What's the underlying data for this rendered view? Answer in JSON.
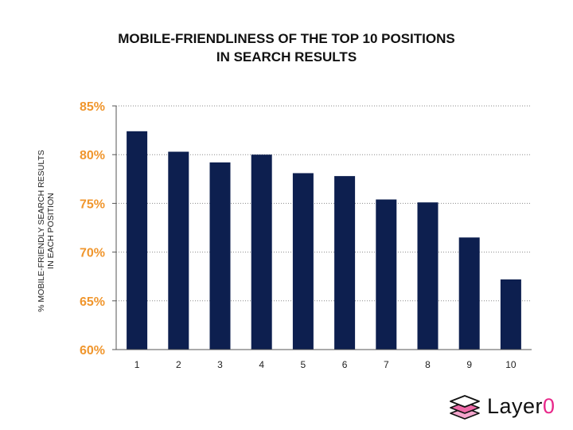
{
  "chart_data": {
    "type": "bar",
    "title_lines": [
      "MOBILE-FRIENDLINESS OF THE TOP 10 POSITIONS",
      "IN SEARCH RESULTS"
    ],
    "ylabel_lines": [
      "% MOBILE-FRIENDLY SEARCH RESULTS",
      "IN EACH POSITION"
    ],
    "xlabel": "",
    "categories": [
      "1",
      "2",
      "3",
      "4",
      "5",
      "6",
      "7",
      "8",
      "9",
      "10"
    ],
    "values": [
      82.4,
      80.3,
      79.2,
      80.0,
      78.1,
      77.8,
      75.4,
      75.1,
      71.5,
      67.2
    ],
    "ylim": [
      60,
      85
    ],
    "yticks": [
      60,
      65,
      70,
      75,
      80,
      85
    ],
    "ytick_labels": [
      "60%",
      "65%",
      "70%",
      "75%",
      "80%",
      "85%"
    ],
    "grid": "horizontal-dotted",
    "legend": "none",
    "bar_color": "#0d1f4f",
    "tick_color": "#f0962d"
  },
  "brand": {
    "name_main": "Layer",
    "name_accent": "0",
    "accent_color": "#e8288a",
    "icon": "stacked-layers-icon"
  }
}
